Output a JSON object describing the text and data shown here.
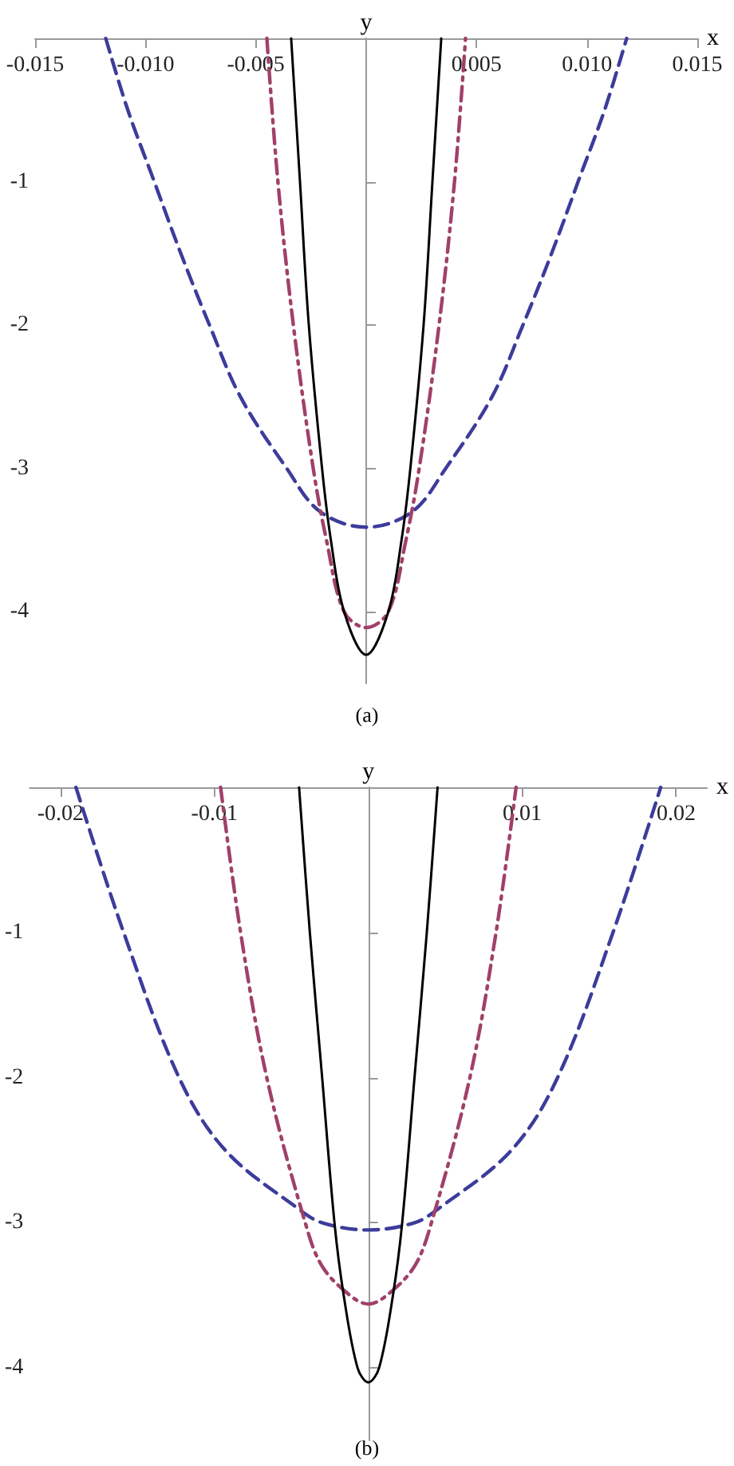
{
  "chart_data": [
    {
      "type": "line",
      "title": "(a)",
      "xlabel": "x",
      "ylabel": "y",
      "xlim": [
        -0.015,
        0.015
      ],
      "ylim": [
        -4.5,
        0
      ],
      "xticks": [
        {
          "value": -0.015,
          "label": "-0.015"
        },
        {
          "value": -0.01,
          "label": "-0.010"
        },
        {
          "value": -0.005,
          "label": "-0.005"
        },
        {
          "value": 0.005,
          "label": "0.005"
        },
        {
          "value": 0.01,
          "label": "0.010"
        },
        {
          "value": 0.015,
          "label": "0.015"
        }
      ],
      "yticks": [
        -1,
        -2,
        -3,
        -4
      ],
      "grid": false,
      "marker": "none",
      "series": [
        {
          "color": "#3c3c9c",
          "line_style": "dashed",
          "x": [
            -0.0118,
            -0.0108,
            -0.0096,
            -0.0084,
            -0.0071,
            -0.0057,
            -0.0036,
            -0.0021,
            0,
            0.0021,
            0.0036,
            0.0057,
            0.0071,
            0.0084,
            0.0096,
            0.0108,
            0.0118
          ],
          "values": [
            0,
            -0.5,
            -1,
            -1.5,
            -2,
            -2.5,
            -3,
            -3.3,
            -3.41,
            -3.3,
            -3,
            -2.5,
            -2,
            -1.5,
            -1,
            -0.5,
            0
          ]
        },
        {
          "color": "#a0406a",
          "line_style": "dashdot",
          "x": [
            -0.0045,
            -0.004,
            -0.0033,
            -0.0024,
            -0.0018,
            -0.001,
            0,
            0.001,
            0.0018,
            0.0024,
            0.0033,
            0.004,
            0.0045
          ],
          "values": [
            0,
            -1,
            -2,
            -3,
            -3.5,
            -4,
            -4.11,
            -4,
            -3.5,
            -3,
            -2,
            -1,
            0
          ]
        },
        {
          "color": "#000000",
          "line_style": "solid",
          "x": [
            -0.0034,
            -0.003,
            -0.0026,
            -0.002,
            -0.0016,
            -0.001,
            0,
            0.001,
            0.0016,
            0.002,
            0.0026,
            0.003,
            0.0034
          ],
          "values": [
            0,
            -1,
            -2,
            -3,
            -3.5,
            -4,
            -4.3,
            -4,
            -3.5,
            -3,
            -2,
            -1,
            0
          ]
        }
      ]
    },
    {
      "type": "line",
      "title": "(b)",
      "xlabel": "x",
      "ylabel": "y",
      "xlim": [
        -0.022,
        0.022
      ],
      "ylim": [
        -4.5,
        0
      ],
      "xticks": [
        -0.02,
        -0.01,
        0.01,
        0.02
      ],
      "yticks": [
        -1,
        -2,
        -3,
        -4
      ],
      "grid": false,
      "marker": "none",
      "series": [
        {
          "color": "#3c3c9c",
          "line_style": "dashed",
          "x": [
            -0.019,
            -0.0159,
            -0.0123,
            -0.0093,
            -0.0046,
            -0.003,
            0,
            0.003,
            0.0046,
            0.0093,
            0.0123,
            0.0159,
            0.019
          ],
          "values": [
            0,
            -1,
            -2,
            -2.5,
            -2.9,
            -3,
            -3.05,
            -3,
            -2.9,
            -2.5,
            -2,
            -1,
            0
          ]
        },
        {
          "color": "#a0406a",
          "line_style": "dashdot",
          "x": [
            -0.0096,
            -0.0083,
            -0.0066,
            -0.0041,
            -0.003,
            -0.0012,
            0,
            0.0012,
            0.003,
            0.0041,
            0.0066,
            0.0083,
            0.0096
          ],
          "values": [
            0,
            -1,
            -2,
            -3,
            -3.3,
            -3.5,
            -3.56,
            -3.5,
            -3.3,
            -3,
            -2,
            -1,
            0
          ]
        },
        {
          "color": "#000000",
          "line_style": "solid",
          "x": [
            -0.0045,
            -0.0038,
            -0.003,
            -0.0022,
            -0.0016,
            -0.0007,
            0,
            0.0007,
            0.0016,
            0.0022,
            0.003,
            0.0038,
            0.0045
          ],
          "values": [
            0,
            -1,
            -2,
            -3,
            -3.5,
            -4,
            -4.1,
            -4,
            -3.5,
            -3,
            -2,
            -1,
            0
          ]
        }
      ]
    }
  ]
}
